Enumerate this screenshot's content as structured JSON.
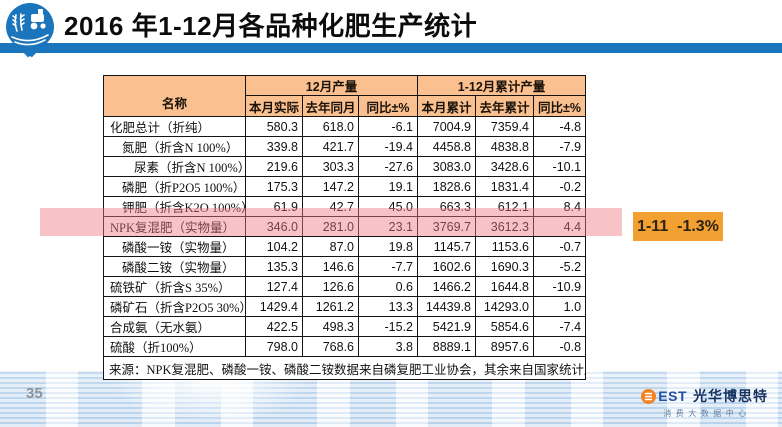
{
  "slide": {
    "title": "2016 年1-12月各品种化肥生产统计",
    "page_number": "35"
  },
  "table": {
    "name_header": "名称",
    "col_groups": [
      {
        "label": "12月产量"
      },
      {
        "label": "1-12月累计产量"
      }
    ],
    "sub_headers": [
      "本月实际",
      "去年同月",
      "同比±%",
      "本月累计",
      "去年累计",
      "同比±%"
    ],
    "rows": [
      {
        "name": "化肥总计（折纯）",
        "indent": 0,
        "values": [
          "580.3",
          "618.0",
          "-6.1",
          "7004.9",
          "7359.4",
          "-4.8"
        ]
      },
      {
        "name": "氮肥（折含N 100%）",
        "indent": 1,
        "values": [
          "339.8",
          "421.7",
          "-19.4",
          "4458.8",
          "4838.8",
          "-7.9"
        ]
      },
      {
        "name": "尿素（折含N 100%）",
        "indent": 2,
        "values": [
          "219.6",
          "303.3",
          "-27.6",
          "3083.0",
          "3428.6",
          "-10.1"
        ]
      },
      {
        "name": "磷肥（折P2O5 100%）",
        "indent": 1,
        "values": [
          "175.3",
          "147.2",
          "19.1",
          "1828.6",
          "1831.4",
          "-0.2"
        ]
      },
      {
        "name": "钾肥（折含K2O  100%）",
        "indent": 1,
        "values": [
          "61.9",
          "42.7",
          "45.0",
          "663.3",
          "612.1",
          "8.4"
        ]
      },
      {
        "name": "NPK复混肥（实物量）",
        "indent": 0,
        "values": [
          "346.0",
          "281.0",
          "23.1",
          "3769.7",
          "3612.3",
          "4.4"
        ],
        "highlighted": true
      },
      {
        "name": "磷酸一铵（实物量）",
        "indent": 1,
        "values": [
          "104.2",
          "87.0",
          "19.8",
          "1145.7",
          "1153.6",
          "-0.7"
        ]
      },
      {
        "name": "磷酸二铵（实物量）",
        "indent": 1,
        "values": [
          "135.3",
          "146.6",
          "-7.7",
          "1602.6",
          "1690.3",
          "-5.2"
        ]
      },
      {
        "name": "硫铁矿（折含S 35%）",
        "indent": 0,
        "values": [
          "127.4",
          "126.6",
          "0.6",
          "1466.2",
          "1644.8",
          "-10.9"
        ]
      },
      {
        "name": "磷矿石（折含P2O5  30%）",
        "indent": 0,
        "values": [
          "1429.4",
          "1261.2",
          "13.3",
          "14439.8",
          "14293.0",
          "1.0"
        ]
      },
      {
        "name": "合成氨（无水氨）",
        "indent": 0,
        "values": [
          "422.5",
          "498.3",
          "-15.2",
          "5421.9",
          "5854.6",
          "-7.4"
        ]
      },
      {
        "name": "硫酸（折100%）",
        "indent": 0,
        "values": [
          "798.0",
          "768.6",
          "3.8",
          "8889.1",
          "8957.6",
          "-0.8"
        ]
      }
    ],
    "source_note": "来源：NPK复混肥、磷酸一铵、磷酸二铵数据来自磷复肥工业协会，其余来自国家统计局"
  },
  "callout": {
    "label": "1-11  -1.3%"
  },
  "footer_logo": {
    "brand_rest": "EST",
    "brand_cn": "光华博思特",
    "subtitle": "消费大数据中心"
  },
  "colors": {
    "header_fill": "#FAC090",
    "title_bar_blue": "#1B75BC",
    "highlight_pink": "#EE7A83",
    "callout_orange": "#F2A032",
    "logo_orange": "#F58220",
    "brand_navy": "#16325F",
    "brand_blue": "#2351A3"
  }
}
